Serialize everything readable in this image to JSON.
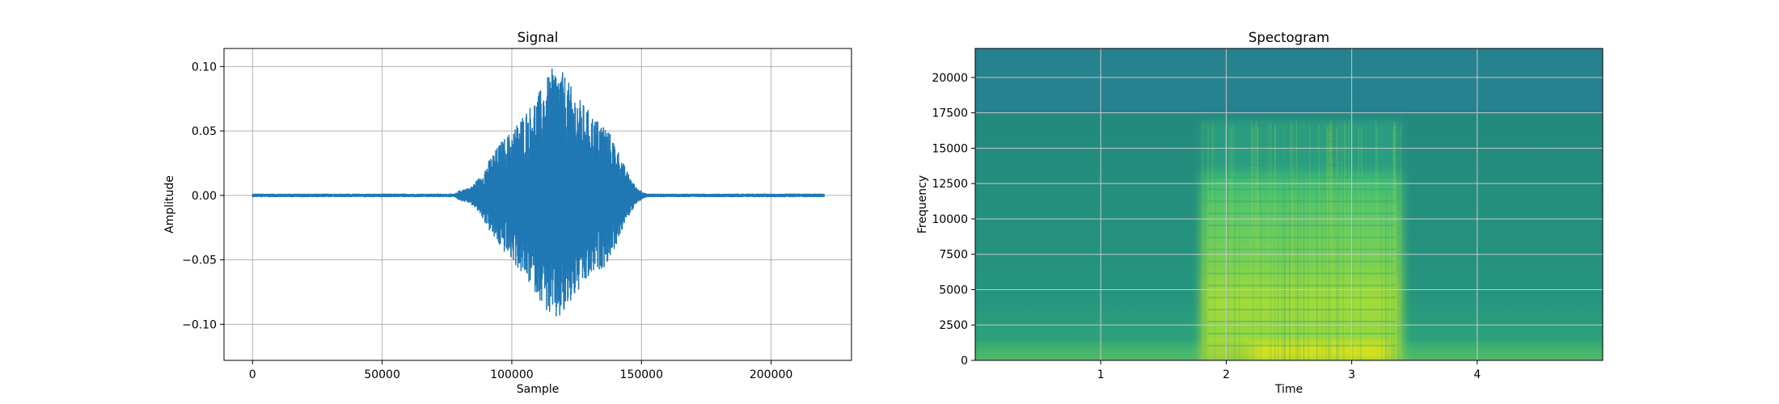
{
  "chart_data": [
    {
      "type": "line",
      "title": "Signal",
      "xlabel": "Sample",
      "ylabel": "Amplitude",
      "xlim": [
        -11000,
        231000
      ],
      "ylim": [
        -0.128,
        0.114
      ],
      "xticks": [
        0,
        50000,
        100000,
        150000,
        200000
      ],
      "xtick_labels": [
        "0",
        "50000",
        "100000",
        "150000",
        "200000"
      ],
      "yticks": [
        -0.1,
        -0.05,
        0.0,
        0.05,
        0.1
      ],
      "ytick_labels": [
        "−0.10",
        "−0.05",
        "0.00",
        "0.05",
        "0.10"
      ],
      "grid": true,
      "color": "#1f77b4",
      "series": [
        {
          "x": [
            0,
            78000,
            80000,
            84000,
            88000,
            92000,
            96000,
            100000,
            104000,
            108000,
            112000,
            116000,
            120000,
            124000,
            128000,
            132000,
            136000,
            140000,
            144000,
            148000,
            152000,
            220500
          ],
          "envelope": [
            0.001,
            0.001,
            0.004,
            0.006,
            0.015,
            0.03,
            0.042,
            0.05,
            0.062,
            0.072,
            0.085,
            0.1,
            0.095,
            0.08,
            0.07,
            0.06,
            0.055,
            0.04,
            0.02,
            0.006,
            0.001,
            0.001
          ]
        }
      ]
    },
    {
      "type": "heatmap",
      "title": "Spectogram",
      "xlabel": "Time",
      "ylabel": "Frequency",
      "xlim": [
        0.0,
        5.0
      ],
      "ylim": [
        0,
        22050
      ],
      "xticks": [
        1,
        2,
        3,
        4
      ],
      "xtick_labels": [
        "1",
        "2",
        "3",
        "4"
      ],
      "yticks": [
        0,
        2500,
        5000,
        7500,
        10000,
        12500,
        15000,
        17500,
        20000
      ],
      "ytick_labels": [
        "0",
        "2500",
        "5000",
        "7500",
        "10000",
        "12500",
        "15000",
        "17500",
        "20000"
      ],
      "grid": true,
      "colormap": "viridis",
      "active_time_range": [
        1.8,
        3.4
      ],
      "active_freq_top": 17000,
      "background_freq_top": 17500
    }
  ]
}
